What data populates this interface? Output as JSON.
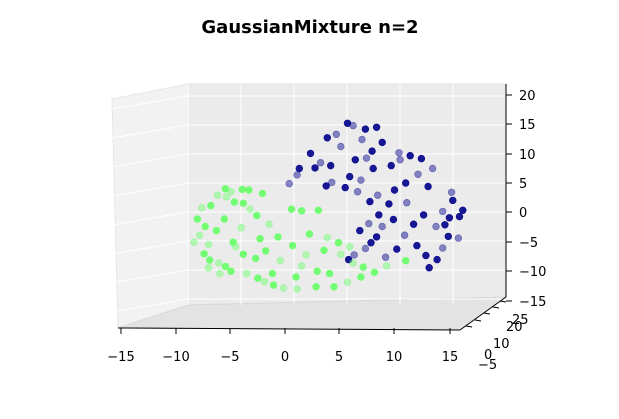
{
  "chart_data": {
    "type": "scatter",
    "title": "GaussianMixture n=2",
    "x_ticks": [
      "−15",
      "−10",
      "−5",
      "0",
      "5",
      "10",
      "15"
    ],
    "z_ticks": [
      "−15",
      "−10",
      "−5",
      "0",
      "5",
      "10",
      "15",
      "20"
    ],
    "y_ticks": [
      "−5",
      "0",
      "10",
      "20",
      "25"
    ],
    "xlim": [
      -15,
      15
    ],
    "ylim": [
      -5,
      25
    ],
    "zlim": [
      -15,
      20
    ],
    "grid": true,
    "colors": {
      "cluster_1": "#00008b",
      "cluster_2": "#66ff66"
    },
    "series": [
      {
        "color": "#00008b",
        "points": [
          [
            5.4,
            0,
            15.3
          ],
          [
            5.9,
            0,
            14.9
          ],
          [
            7,
            0,
            14.3
          ],
          [
            8,
            0,
            14.6
          ],
          [
            10,
            0,
            10.2
          ],
          [
            11,
            0,
            9.7
          ],
          [
            12,
            0,
            9.2
          ],
          [
            13,
            0,
            7.5
          ],
          [
            11.7,
            0,
            6.5
          ],
          [
            10.6,
            0,
            5.0
          ],
          [
            12.6,
            0,
            4.4
          ],
          [
            14.7,
            0,
            3.4
          ],
          [
            14.8,
            0,
            2.0
          ],
          [
            15.7,
            0,
            0.3
          ],
          [
            13.9,
            0,
            0.1
          ],
          [
            14.1,
            0,
            -2.2
          ],
          [
            14.4,
            0,
            -4.2
          ],
          [
            15.3,
            0,
            -4.5
          ],
          [
            13.9,
            0,
            -6.2
          ],
          [
            13.4,
            0,
            -8.2
          ],
          [
            12.7,
            0,
            -9.6
          ],
          [
            8.1,
            0,
            2.9
          ],
          [
            9.1,
            0,
            1.4
          ],
          [
            9.5,
            0,
            -1.3
          ],
          [
            8.5,
            0,
            -2.5
          ],
          [
            8,
            0,
            -4.3
          ],
          [
            7.5,
            0,
            -5.3
          ],
          [
            7,
            0,
            -6.3
          ],
          [
            6,
            0,
            -7.4
          ],
          [
            5.5,
            0,
            -8.2
          ],
          [
            7.6,
            0,
            10.5
          ],
          [
            7.1,
            0,
            9.3
          ],
          [
            6.1,
            0,
            9.0
          ],
          [
            3.9,
            0,
            8.0
          ],
          [
            3.0,
            0,
            8.5
          ],
          [
            2.5,
            0,
            7.6
          ],
          [
            1.1,
            0,
            7.5
          ],
          [
            0.9,
            0,
            6.4
          ],
          [
            0.2,
            0,
            4.9
          ],
          [
            5.6,
            0,
            6.1
          ],
          [
            5.2,
            0,
            4.2
          ],
          [
            6.3,
            0,
            3.5
          ],
          [
            7.4,
            0,
            1.8
          ],
          [
            8.2,
            0,
            -0.5
          ],
          [
            4.0,
            0,
            5.1
          ],
          [
            3.5,
            0,
            4.5
          ],
          [
            6.5,
            0,
            -3.2
          ],
          [
            7.3,
            0,
            -2.0
          ],
          [
            10.5,
            0,
            -4.0
          ],
          [
            11.6,
            0,
            -5.8
          ],
          [
            12.4,
            0,
            -7.5
          ],
          [
            13.3,
            0,
            -2.5
          ],
          [
            15.4,
            0,
            -0.8
          ],
          [
            9.6,
            0,
            3.8
          ],
          [
            10.7,
            0,
            1.6
          ],
          [
            12.2,
            0,
            -0.5
          ],
          [
            2.1,
            0,
            10.1
          ],
          [
            4.8,
            0,
            11.3
          ],
          [
            6.7,
            0,
            12.5
          ],
          [
            8.5,
            0,
            12.0
          ],
          [
            9.3,
            0,
            8.0
          ],
          [
            4.4,
            0,
            13.4
          ],
          [
            3.6,
            0,
            12.8
          ],
          [
            11.3,
            0,
            -2.1
          ],
          [
            6.6,
            0,
            5.5
          ],
          [
            7.7,
            0,
            7.5
          ],
          [
            9.8,
            0,
            -6.4
          ],
          [
            8.8,
            0,
            -7.8
          ],
          [
            10.1,
            0,
            9.0
          ],
          [
            14.5,
            0,
            -1.0
          ]
        ]
      },
      {
        "color": "#66ff66",
        "points": [
          [
            -5.5,
            0,
            4.0
          ],
          [
            -5,
            0,
            3.5
          ],
          [
            -4,
            0,
            3.9
          ],
          [
            -3.4,
            0,
            3.8
          ],
          [
            -6.2,
            0,
            2.9
          ],
          [
            -5.4,
            0,
            2.6
          ],
          [
            -4.7,
            0,
            1.7
          ],
          [
            -3.9,
            0,
            1.5
          ],
          [
            -3.3,
            0,
            0.5
          ],
          [
            -2.7,
            0,
            -0.6
          ],
          [
            -6.8,
            0,
            1.1
          ],
          [
            -7.6,
            0,
            0.7
          ],
          [
            -8.0,
            0,
            -1.2
          ],
          [
            -7.3,
            0,
            -2.5
          ],
          [
            -7.8,
            0,
            -4.0
          ],
          [
            -8.3,
            0,
            -5.2
          ],
          [
            -7.4,
            0,
            -7.2
          ],
          [
            -6.9,
            0,
            -8.3
          ],
          [
            -6.1,
            0,
            -8.8
          ],
          [
            -5.5,
            0,
            -9.4
          ],
          [
            -5.0,
            0,
            -10.2
          ],
          [
            -3.6,
            0,
            -10.6
          ],
          [
            -2.6,
            0,
            -11.4
          ],
          [
            -1.2,
            0,
            -12.6
          ],
          [
            -0.3,
            0,
            -13.1
          ],
          [
            0.9,
            0,
            -13.3
          ],
          [
            2.6,
            0,
            -12.9
          ],
          [
            4.2,
            0,
            -12.9
          ],
          [
            5.4,
            0,
            -12.1
          ],
          [
            6.6,
            0,
            -11.2
          ],
          [
            7.8,
            0,
            -10.4
          ],
          [
            8.9,
            0,
            -9.3
          ],
          [
            10.6,
            0,
            -8.4
          ],
          [
            -1.9,
            0,
            -6.7
          ],
          [
            -0.6,
            0,
            -8.4
          ],
          [
            1.3,
            0,
            -9.3
          ],
          [
            2.7,
            0,
            -10.2
          ],
          [
            3.8,
            0,
            -10.6
          ],
          [
            5.9,
            0,
            -8.8
          ],
          [
            -2.8,
            0,
            -8.0
          ],
          [
            -3.9,
            0,
            -7.3
          ],
          [
            -4.6,
            0,
            -6.0
          ],
          [
            -4.8,
            0,
            -5.2
          ],
          [
            3.3,
            0,
            -6.6
          ],
          [
            4.8,
            0,
            -7.3
          ],
          [
            5.6,
            0,
            -6.0
          ],
          [
            1.3,
            0,
            0.2
          ],
          [
            0.4,
            0,
            0.5
          ],
          [
            -1.6,
            0,
            -2.1
          ],
          [
            -0.8,
            0,
            -4.3
          ],
          [
            0.5,
            0,
            -5.8
          ],
          [
            1.7,
            0,
            -7.4
          ],
          [
            -5.6,
            0,
            -1.2
          ],
          [
            -6.3,
            0,
            -3.2
          ],
          [
            -7.0,
            0,
            -5.6
          ],
          [
            -4.1,
            0,
            -2.7
          ],
          [
            -2.4,
            0,
            -4.6
          ],
          [
            2.0,
            0,
            -3.8
          ],
          [
            3.6,
            0,
            -4.4
          ],
          [
            0.8,
            0,
            -11.2
          ],
          [
            -1.3,
            0,
            -10.6
          ],
          [
            -2.0,
            0,
            -12.0
          ],
          [
            6.8,
            0,
            -9.5
          ],
          [
            4.6,
            0,
            -5.3
          ],
          [
            -6.0,
            0,
            -10.6
          ],
          [
            -7.0,
            0,
            -9.6
          ],
          [
            -2.2,
            0,
            3.2
          ],
          [
            2.8,
            0,
            0.3
          ]
        ]
      }
    ]
  }
}
